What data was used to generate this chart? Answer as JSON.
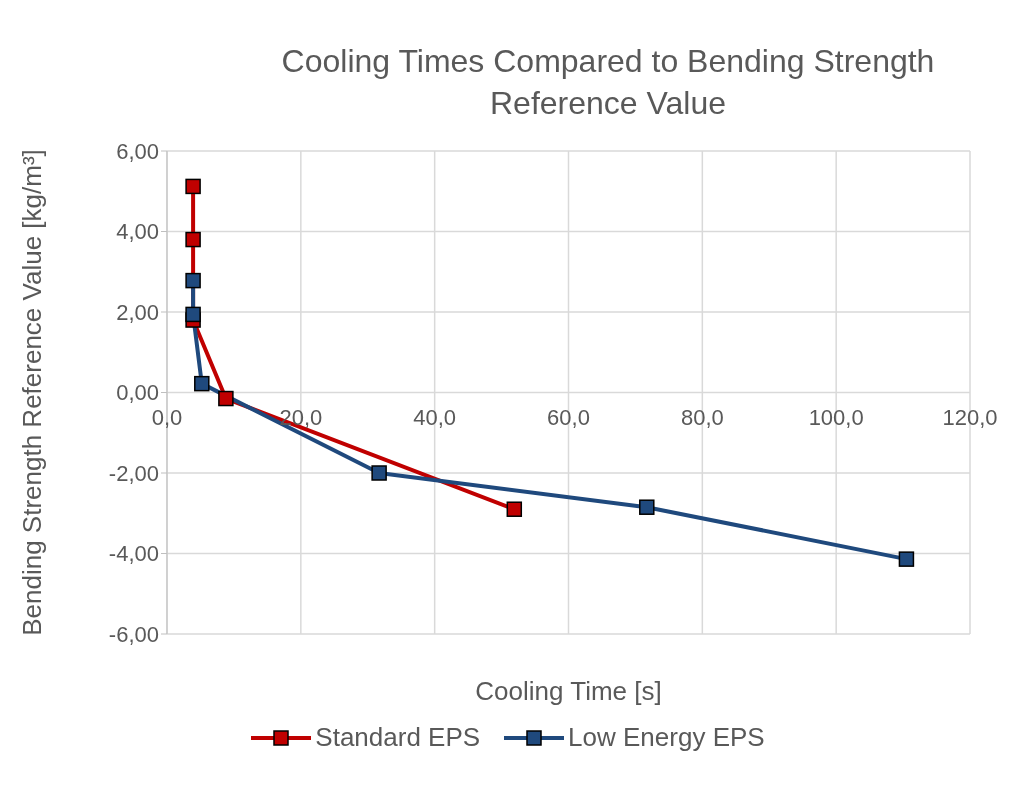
{
  "chart_data": {
    "type": "line",
    "title": "Cooling Times Compared to Bending Strength Reference Value",
    "xlabel": "Cooling Time [s]",
    "ylabel": "Bending Strength Reference Value [kg/m³]",
    "series": [
      {
        "name": "Standard EPS",
        "color": "#c00000",
        "x": [
          3.9,
          3.9,
          3.9,
          8.8,
          51.9
        ],
        "values": [
          5.12,
          3.8,
          1.8,
          -0.15,
          -2.9
        ]
      },
      {
        "name": "Low Energy EPS",
        "color": "#1f497d",
        "x": [
          3.9,
          3.9,
          5.2,
          31.7,
          71.7,
          110.5
        ],
        "values": [
          2.78,
          1.94,
          0.22,
          -2.0,
          -2.85,
          -4.14
        ]
      }
    ],
    "xlim": [
      0,
      120
    ],
    "xticks": [
      {
        "value": 0,
        "label": "0,0"
      },
      {
        "value": 20,
        "label": "20,0"
      },
      {
        "value": 40,
        "label": "40,0"
      },
      {
        "value": 60,
        "label": "60,0"
      },
      {
        "value": 80,
        "label": "80,0"
      },
      {
        "value": 100,
        "label": "100,0"
      },
      {
        "value": 120,
        "label": "120,0"
      }
    ],
    "ylim": [
      -6,
      6
    ],
    "yticks": [
      {
        "value": -6,
        "label": "-6,00"
      },
      {
        "value": -4,
        "label": "-4,00"
      },
      {
        "value": -2,
        "label": "-2,00"
      },
      {
        "value": 0,
        "label": "0,00"
      },
      {
        "value": 2,
        "label": "2,00"
      },
      {
        "value": 4,
        "label": "4,00"
      },
      {
        "value": 6,
        "label": "6,00"
      }
    ],
    "grid": true,
    "legend": "bottom",
    "marker": "square",
    "line_style": "solid"
  }
}
